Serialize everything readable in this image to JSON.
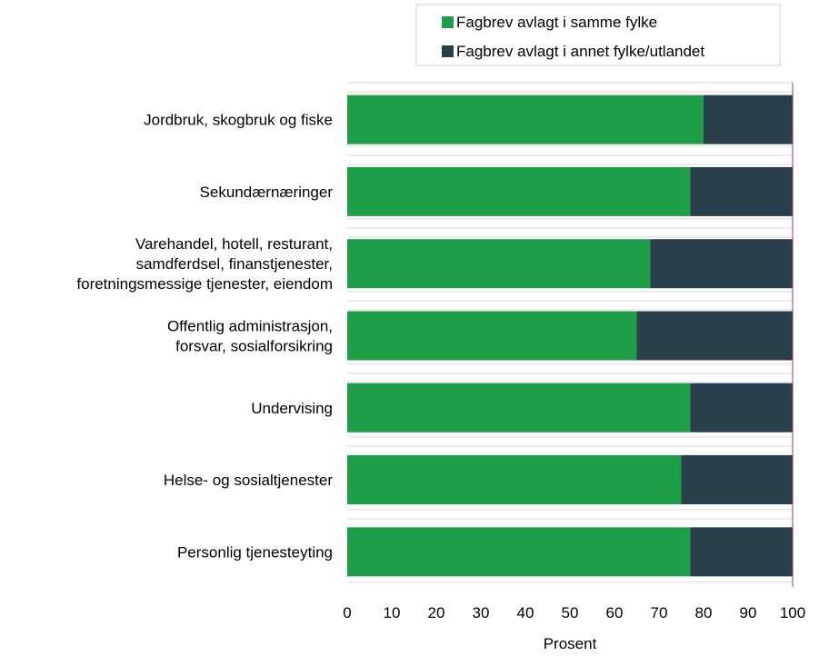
{
  "chart_data": {
    "type": "bar",
    "orientation": "horizontal",
    "stacked": true,
    "categories": [
      [
        "Jordbruk, skogbruk og fiske"
      ],
      [
        "Sekundærnæringer"
      ],
      [
        "Varehandel, hotell, resturant,",
        "samdferdsel, finanstjenester,",
        "foretningsmessige tjenester, eiendom"
      ],
      [
        "Offentlig administrasjon,",
        "forsvar, sosialforsikring"
      ],
      [
        "Undervising"
      ],
      [
        "Helse- og sosialtjenester"
      ],
      [
        "Personlig tjenesteyting"
      ]
    ],
    "series": [
      {
        "name": "Fagbrev avlagt i samme fylke",
        "color": "#1f9e49",
        "values": [
          80,
          77,
          68,
          65,
          77,
          75,
          77
        ]
      },
      {
        "name": "Fagbrev avlagt i annet fylke/utlandet",
        "color": "#29404a",
        "values": [
          20,
          23,
          32,
          35,
          23,
          25,
          23
        ]
      }
    ],
    "xlabel": "Prosent",
    "xlim": [
      0,
      100
    ],
    "xticks": [
      "0",
      "10",
      "20",
      "30",
      "40",
      "50",
      "60",
      "70",
      "80",
      "90",
      "100"
    ],
    "grid": "horizontal",
    "legend": "top-right"
  }
}
